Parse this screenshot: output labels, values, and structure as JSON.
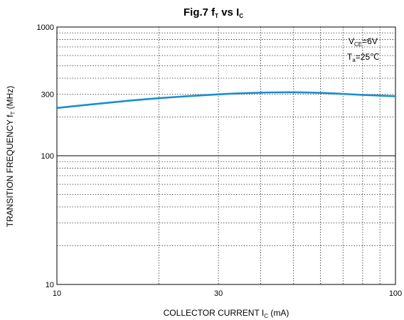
{
  "chart_data": {
    "type": "line",
    "title": {
      "main": "Fig.7  f",
      "sub1": "T",
      "mid": "  vs  I",
      "sub2": "C"
    },
    "xlabel": {
      "main": "COLLECTOR CURRENT   I",
      "sub": "C",
      "unit": "  (mA)"
    },
    "ylabel": {
      "main": "TRANSITION FREQUENCY   f",
      "sub": "T",
      "unit": "   (MHz)"
    },
    "x_scale": "log",
    "y_scale": "log",
    "xlim": [
      10,
      100
    ],
    "ylim": [
      10,
      1000
    ],
    "x_ticks": [
      {
        "value": 10,
        "label": "10"
      },
      {
        "value": 30,
        "label": "30"
      },
      {
        "value": 100,
        "label": "100"
      }
    ],
    "y_ticks": [
      {
        "value": 10,
        "label": "10"
      },
      {
        "value": 100,
        "label": "100"
      },
      {
        "value": 300,
        "label": "300"
      },
      {
        "value": 1000,
        "label": "1000"
      }
    ],
    "grid": true,
    "annotations": [
      {
        "main": "V",
        "sub": "CE",
        "rest": "=6V"
      },
      {
        "main": "T",
        "sub": "a",
        "rest": "=25℃"
      }
    ],
    "series": [
      {
        "color": "#1a8fd0",
        "x": [
          10,
          15,
          20,
          30,
          40,
          50,
          60,
          70,
          80,
          100
        ],
        "y": [
          235,
          262,
          280,
          300,
          309,
          311,
          308,
          302,
          297,
          290
        ]
      }
    ]
  }
}
